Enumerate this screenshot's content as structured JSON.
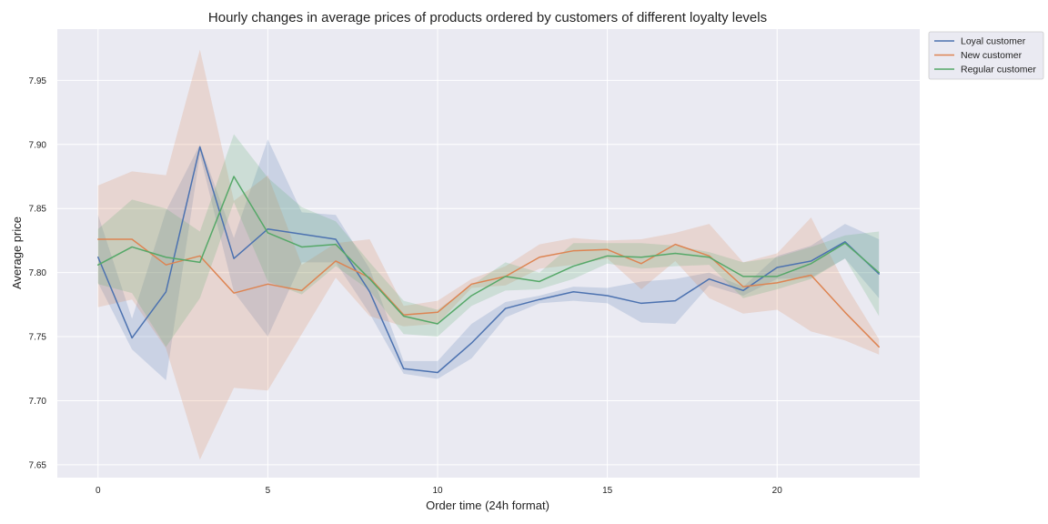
{
  "chart_data": {
    "type": "line",
    "title": "Hourly changes in average prices of products ordered by customers of different loyalty levels",
    "xlabel": "Order time (24h format)",
    "ylabel": "Average price",
    "xlim": [
      -1.2,
      24.2
    ],
    "ylim": [
      7.64,
      7.99
    ],
    "xticks": [
      0,
      5,
      10,
      15,
      20
    ],
    "yticks": [
      7.65,
      7.7,
      7.75,
      7.8,
      7.85,
      7.9,
      7.95
    ],
    "grid": true,
    "legend_position": "outside-top-right",
    "background": "#eaeaf2",
    "x": [
      0,
      1,
      2,
      3,
      4,
      5,
      6,
      7,
      8,
      9,
      10,
      11,
      12,
      13,
      14,
      15,
      16,
      17,
      18,
      19,
      20,
      21,
      22,
      23
    ],
    "series": [
      {
        "name": "Loyal customer",
        "color": "#4c72b0",
        "values": [
          7.812,
          7.749,
          7.785,
          7.898,
          7.811,
          7.834,
          7.83,
          7.826,
          7.785,
          7.725,
          7.722,
          7.745,
          7.772,
          7.779,
          7.785,
          7.782,
          7.776,
          7.778,
          7.795,
          7.786,
          7.804,
          7.809,
          7.824,
          7.799
        ],
        "lower": [
          7.792,
          7.74,
          7.716,
          7.892,
          7.785,
          7.75,
          7.808,
          7.808,
          7.768,
          7.721,
          7.717,
          7.733,
          7.765,
          7.776,
          7.778,
          7.776,
          7.761,
          7.76,
          7.79,
          7.782,
          7.795,
          7.796,
          7.811,
          7.78
        ],
        "upper": [
          7.845,
          7.764,
          7.848,
          7.9,
          7.827,
          7.904,
          7.847,
          7.845,
          7.803,
          7.731,
          7.731,
          7.76,
          7.777,
          7.782,
          7.789,
          7.788,
          7.793,
          7.795,
          7.8,
          7.789,
          7.813,
          7.821,
          7.838,
          7.826
        ]
      },
      {
        "name": "New customer",
        "color": "#dd8452",
        "values": [
          7.826,
          7.826,
          7.806,
          7.813,
          7.784,
          7.791,
          7.786,
          7.809,
          7.796,
          7.767,
          7.769,
          7.791,
          7.797,
          7.812,
          7.817,
          7.818,
          7.807,
          7.822,
          7.813,
          7.789,
          7.792,
          7.798,
          7.769,
          7.742
        ],
        "lower": [
          7.773,
          7.779,
          7.741,
          7.654,
          7.71,
          7.708,
          7.752,
          7.796,
          7.766,
          7.758,
          7.76,
          7.788,
          7.79,
          7.803,
          7.806,
          7.811,
          7.787,
          7.809,
          7.78,
          7.768,
          7.771,
          7.754,
          7.747,
          7.736
        ],
        "upper": [
          7.868,
          7.879,
          7.876,
          7.974,
          7.856,
          7.876,
          7.806,
          7.823,
          7.826,
          7.774,
          7.778,
          7.795,
          7.805,
          7.822,
          7.827,
          7.825,
          7.826,
          7.831,
          7.838,
          7.808,
          7.815,
          7.843,
          7.791,
          7.748
        ]
      },
      {
        "name": "Regular customer",
        "color": "#55a868",
        "values": [
          7.806,
          7.82,
          7.812,
          7.808,
          7.875,
          7.831,
          7.82,
          7.822,
          7.795,
          7.766,
          7.76,
          7.782,
          7.797,
          7.793,
          7.805,
          7.813,
          7.812,
          7.815,
          7.812,
          7.797,
          7.797,
          7.807,
          7.823,
          7.8
        ],
        "lower": [
          7.791,
          7.784,
          7.742,
          7.78,
          7.855,
          7.793,
          7.783,
          7.805,
          7.786,
          7.752,
          7.75,
          7.774,
          7.786,
          7.787,
          7.795,
          7.807,
          7.803,
          7.805,
          7.806,
          7.78,
          7.787,
          7.795,
          7.811,
          7.766
        ],
        "upper": [
          7.834,
          7.857,
          7.85,
          7.832,
          7.908,
          7.874,
          7.851,
          7.84,
          7.808,
          7.778,
          7.771,
          7.79,
          7.808,
          7.8,
          7.823,
          7.823,
          7.823,
          7.821,
          7.816,
          7.808,
          7.812,
          7.82,
          7.829,
          7.832
        ]
      }
    ]
  }
}
